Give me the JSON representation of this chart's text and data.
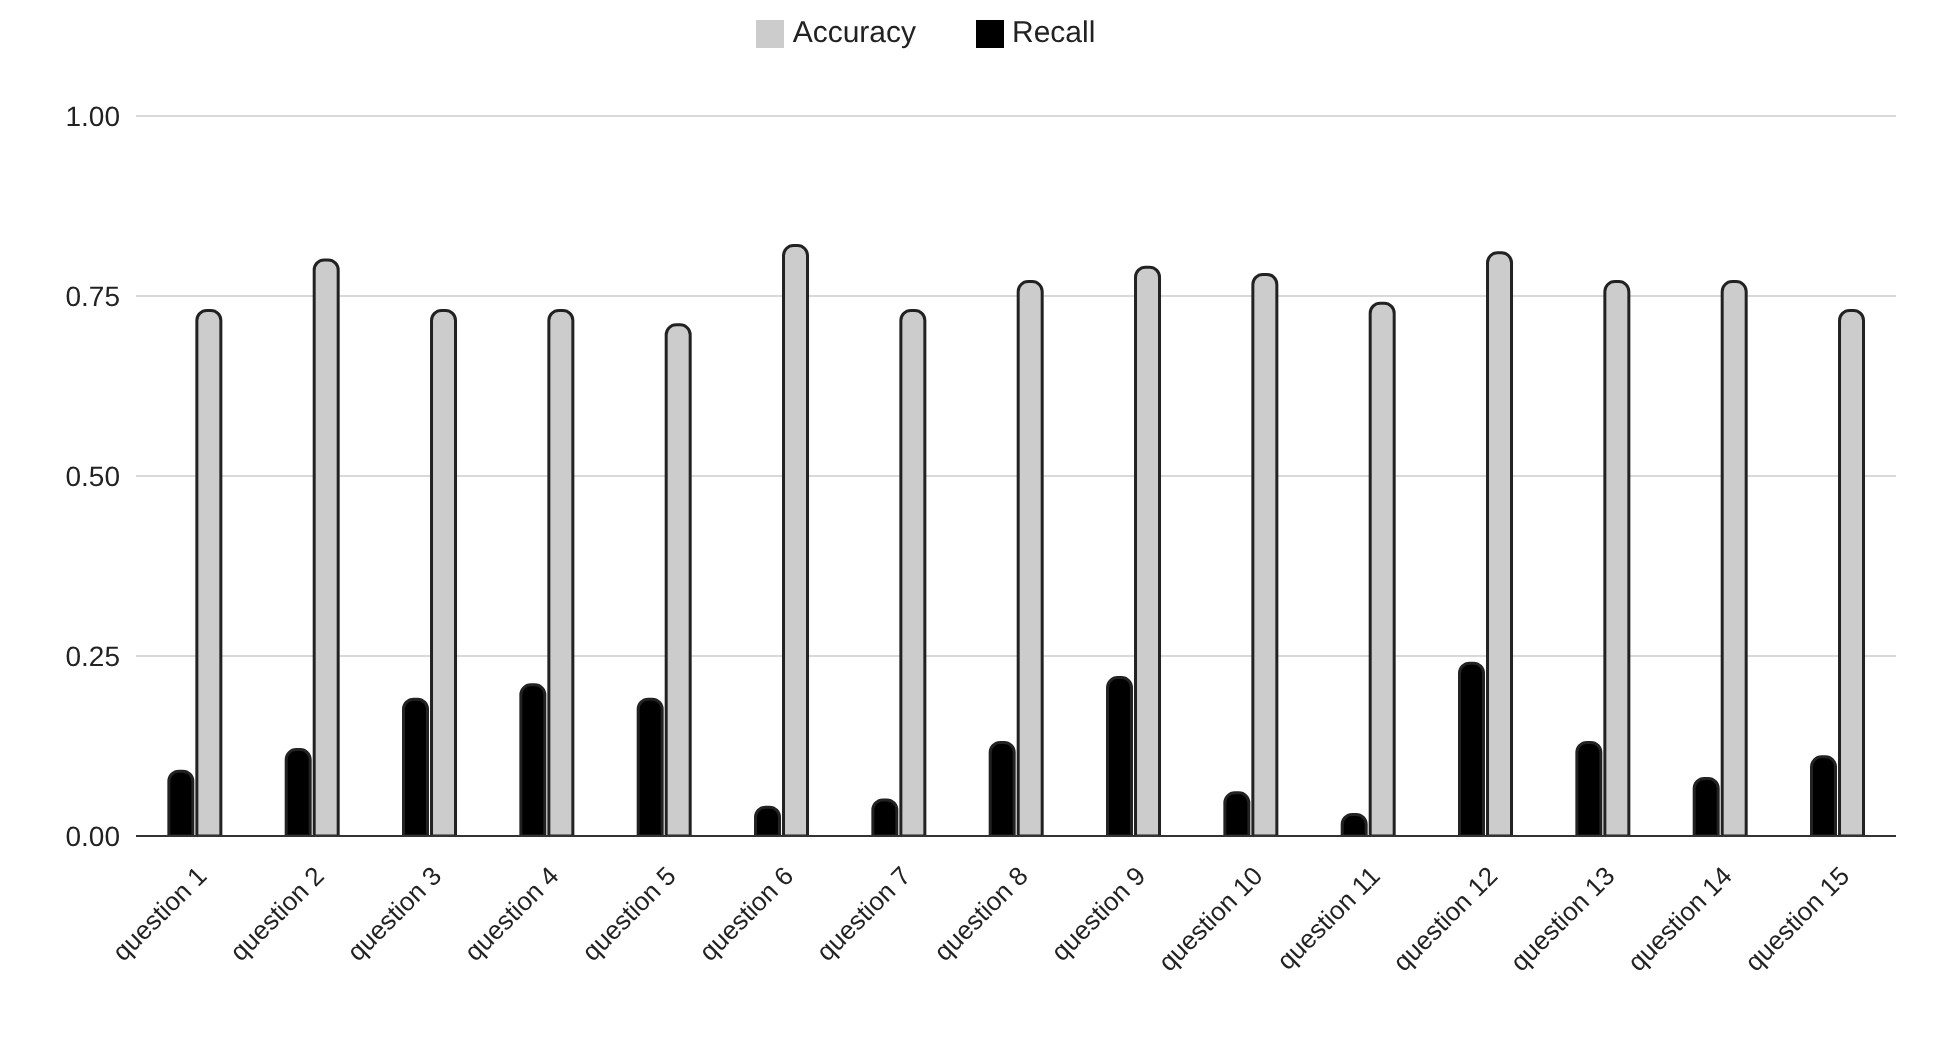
{
  "chart_data": {
    "type": "bar",
    "categories": [
      "question 1",
      "question 2",
      "question 3",
      "question 4",
      "question 5",
      "question 6",
      "question 7",
      "question 8",
      "question 9",
      "question 10",
      "question 11",
      "question 12",
      "question 13",
      "question 14",
      "question 15"
    ],
    "series": [
      {
        "name": "Recall",
        "color": "#000000",
        "values": [
          0.09,
          0.12,
          0.19,
          0.21,
          0.19,
          0.04,
          0.05,
          0.13,
          0.22,
          0.06,
          0.03,
          0.24,
          0.13,
          0.08,
          0.11
        ]
      },
      {
        "name": "Accuracy",
        "color": "#cccccc",
        "values": [
          0.73,
          0.8,
          0.73,
          0.73,
          0.71,
          0.82,
          0.73,
          0.77,
          0.79,
          0.78,
          0.74,
          0.81,
          0.77,
          0.77,
          0.73
        ]
      }
    ],
    "ylim": [
      0,
      1
    ],
    "yticks": [
      {
        "value": 0,
        "label": "0.00"
      },
      {
        "value": 0.25,
        "label": "0.25"
      },
      {
        "value": 0.5,
        "label": "0.50"
      },
      {
        "value": 0.75,
        "label": "0.75"
      },
      {
        "value": 1,
        "label": "1.00"
      }
    ],
    "grid": "y",
    "legend": "top"
  }
}
